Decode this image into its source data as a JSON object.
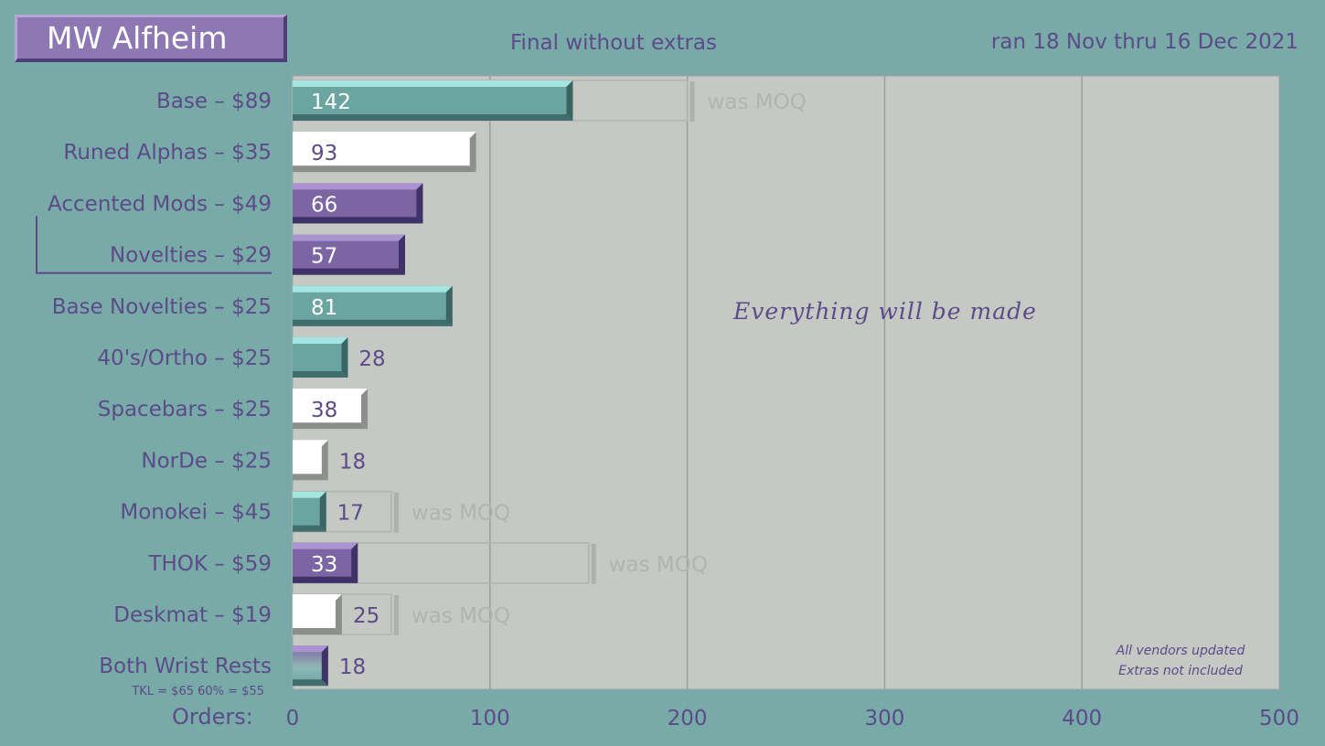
{
  "header": {
    "logo": "MW Alfheim",
    "subtitle": "Final without extras",
    "date_range": "ran 18 Nov thru 16 Dec 2021"
  },
  "colors": {
    "background": "#78aaa8",
    "plot_area": "#c6c8c4",
    "text": "#5d4a88",
    "teal": "#6aa5a2",
    "white": "#ffffff",
    "purple": "#7c65a3",
    "moq_outline": "#b0b2ae",
    "moq_text": "#b2b4b0"
  },
  "chart_data": {
    "type": "bar",
    "orientation": "horizontal",
    "xlabel": "Orders:",
    "xlim": [
      0,
      500
    ],
    "xticks": [
      0,
      100,
      200,
      300,
      400,
      500
    ],
    "grid": "vertical",
    "categories": [
      "Base – $89",
      "Runed Alphas – $35",
      "Accented Mods – $49",
      "Novelties – $29",
      "Base Novelties – $25",
      "40's/Ortho – $25",
      "Spacebars – $25",
      "NorDe – $25",
      "Monokei – $45",
      "THOK – $59",
      "Deskmat – $19",
      "Both Wrist Rests"
    ],
    "values": [
      142,
      93,
      66,
      57,
      81,
      28,
      38,
      18,
      17,
      33,
      25,
      18
    ],
    "value_labels": [
      "142",
      "93",
      "66",
      "57",
      "81",
      "28",
      "38",
      "18",
      "17",
      "33",
      "25",
      "18"
    ],
    "bar_colors": [
      "teal",
      "white",
      "purple",
      "purple",
      "teal",
      "teal",
      "white",
      "white",
      "teal",
      "purple",
      "white",
      "gradient"
    ],
    "moq": {
      "label": "was MOQ",
      "values": [
        200,
        null,
        null,
        null,
        null,
        null,
        null,
        null,
        50,
        150,
        50,
        null
      ]
    },
    "bracket": "Accented Mods – $49 to Novelties – $29",
    "sublabel": "TKL = $65    60% = $55",
    "annotation": "Everything will be made",
    "notes": [
      "All vendors updated",
      "Extras not included"
    ]
  }
}
